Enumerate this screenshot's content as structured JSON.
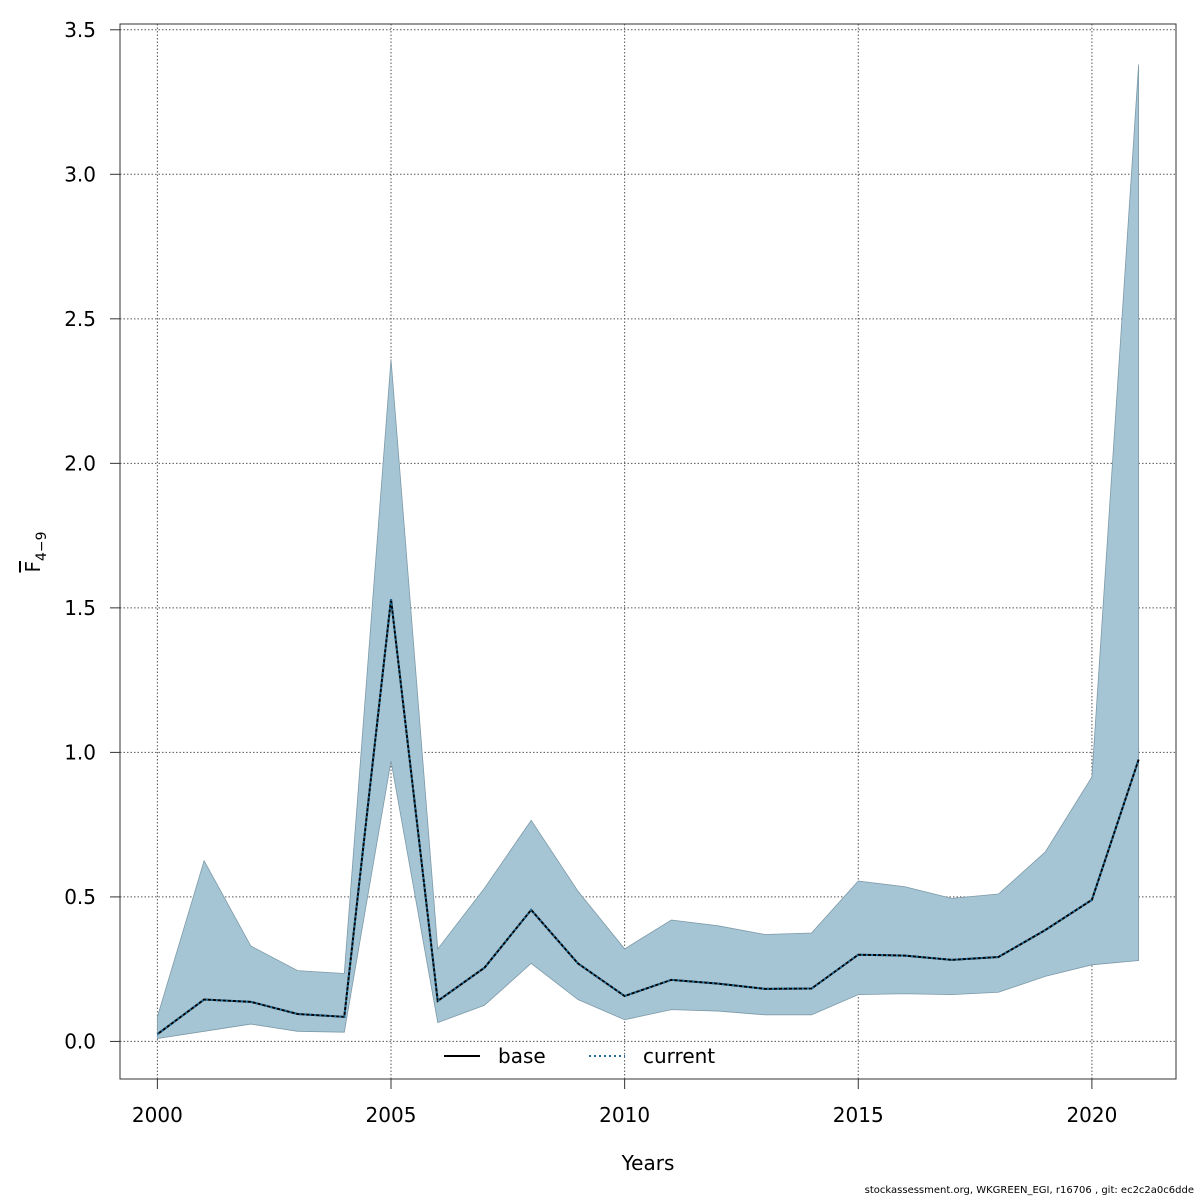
{
  "chart_data": {
    "type": "area",
    "title": "",
    "xlabel": "Years",
    "ylabel": "F",
    "ylabel_subscript": "4−9",
    "xlim": [
      1999.2,
      2021.8
    ],
    "ylim": [
      -0.13,
      3.52
    ],
    "x_ticks": [
      2000,
      2005,
      2010,
      2015,
      2020
    ],
    "y_ticks": [
      0.0,
      0.5,
      1.0,
      1.5,
      2.0,
      2.5,
      3.0,
      3.5
    ],
    "y_tick_labels": [
      "0.0",
      "0.5",
      "1.0",
      "1.5",
      "2.0",
      "2.5",
      "3.0",
      "3.5"
    ],
    "grid": true,
    "legend_position": "bottom-center",
    "band_color": "#a5c4d4",
    "x": [
      2000,
      2001,
      2002,
      2003,
      2004,
      2005,
      2006,
      2007,
      2008,
      2009,
      2010,
      2011,
      2012,
      2013,
      2014,
      2015,
      2016,
      2017,
      2018,
      2019,
      2020,
      2021
    ],
    "lower": [
      0.01,
      0.035,
      0.06,
      0.035,
      0.032,
      0.97,
      0.065,
      0.125,
      0.27,
      0.145,
      0.075,
      0.11,
      0.105,
      0.092,
      0.092,
      0.162,
      0.165,
      0.162,
      0.17,
      0.225,
      0.265,
      0.28
    ],
    "upper": [
      0.085,
      0.625,
      0.33,
      0.245,
      0.235,
      2.36,
      0.32,
      0.53,
      0.765,
      0.52,
      0.32,
      0.42,
      0.4,
      0.37,
      0.375,
      0.555,
      0.535,
      0.495,
      0.51,
      0.655,
      0.915,
      3.38
    ],
    "series": [
      {
        "name": "base",
        "color": "#000000",
        "dash": "solid",
        "values": [
          0.025,
          0.145,
          0.137,
          0.095,
          0.085,
          1.53,
          0.14,
          0.255,
          0.455,
          0.27,
          0.157,
          0.213,
          0.2,
          0.182,
          0.183,
          0.3,
          0.297,
          0.282,
          0.292,
          0.385,
          0.49,
          0.975
        ]
      },
      {
        "name": "current",
        "color": "#1f6e9c",
        "dash": "dotted",
        "values": [
          0.025,
          0.145,
          0.137,
          0.095,
          0.085,
          1.53,
          0.14,
          0.255,
          0.455,
          0.27,
          0.157,
          0.213,
          0.2,
          0.182,
          0.183,
          0.3,
          0.297,
          0.282,
          0.292,
          0.385,
          0.49,
          0.975
        ]
      }
    ]
  },
  "footer": {
    "text": "stockassessment.org, WKGREEN_EGI, r16706 , git: ec2c2a0c6dde"
  }
}
